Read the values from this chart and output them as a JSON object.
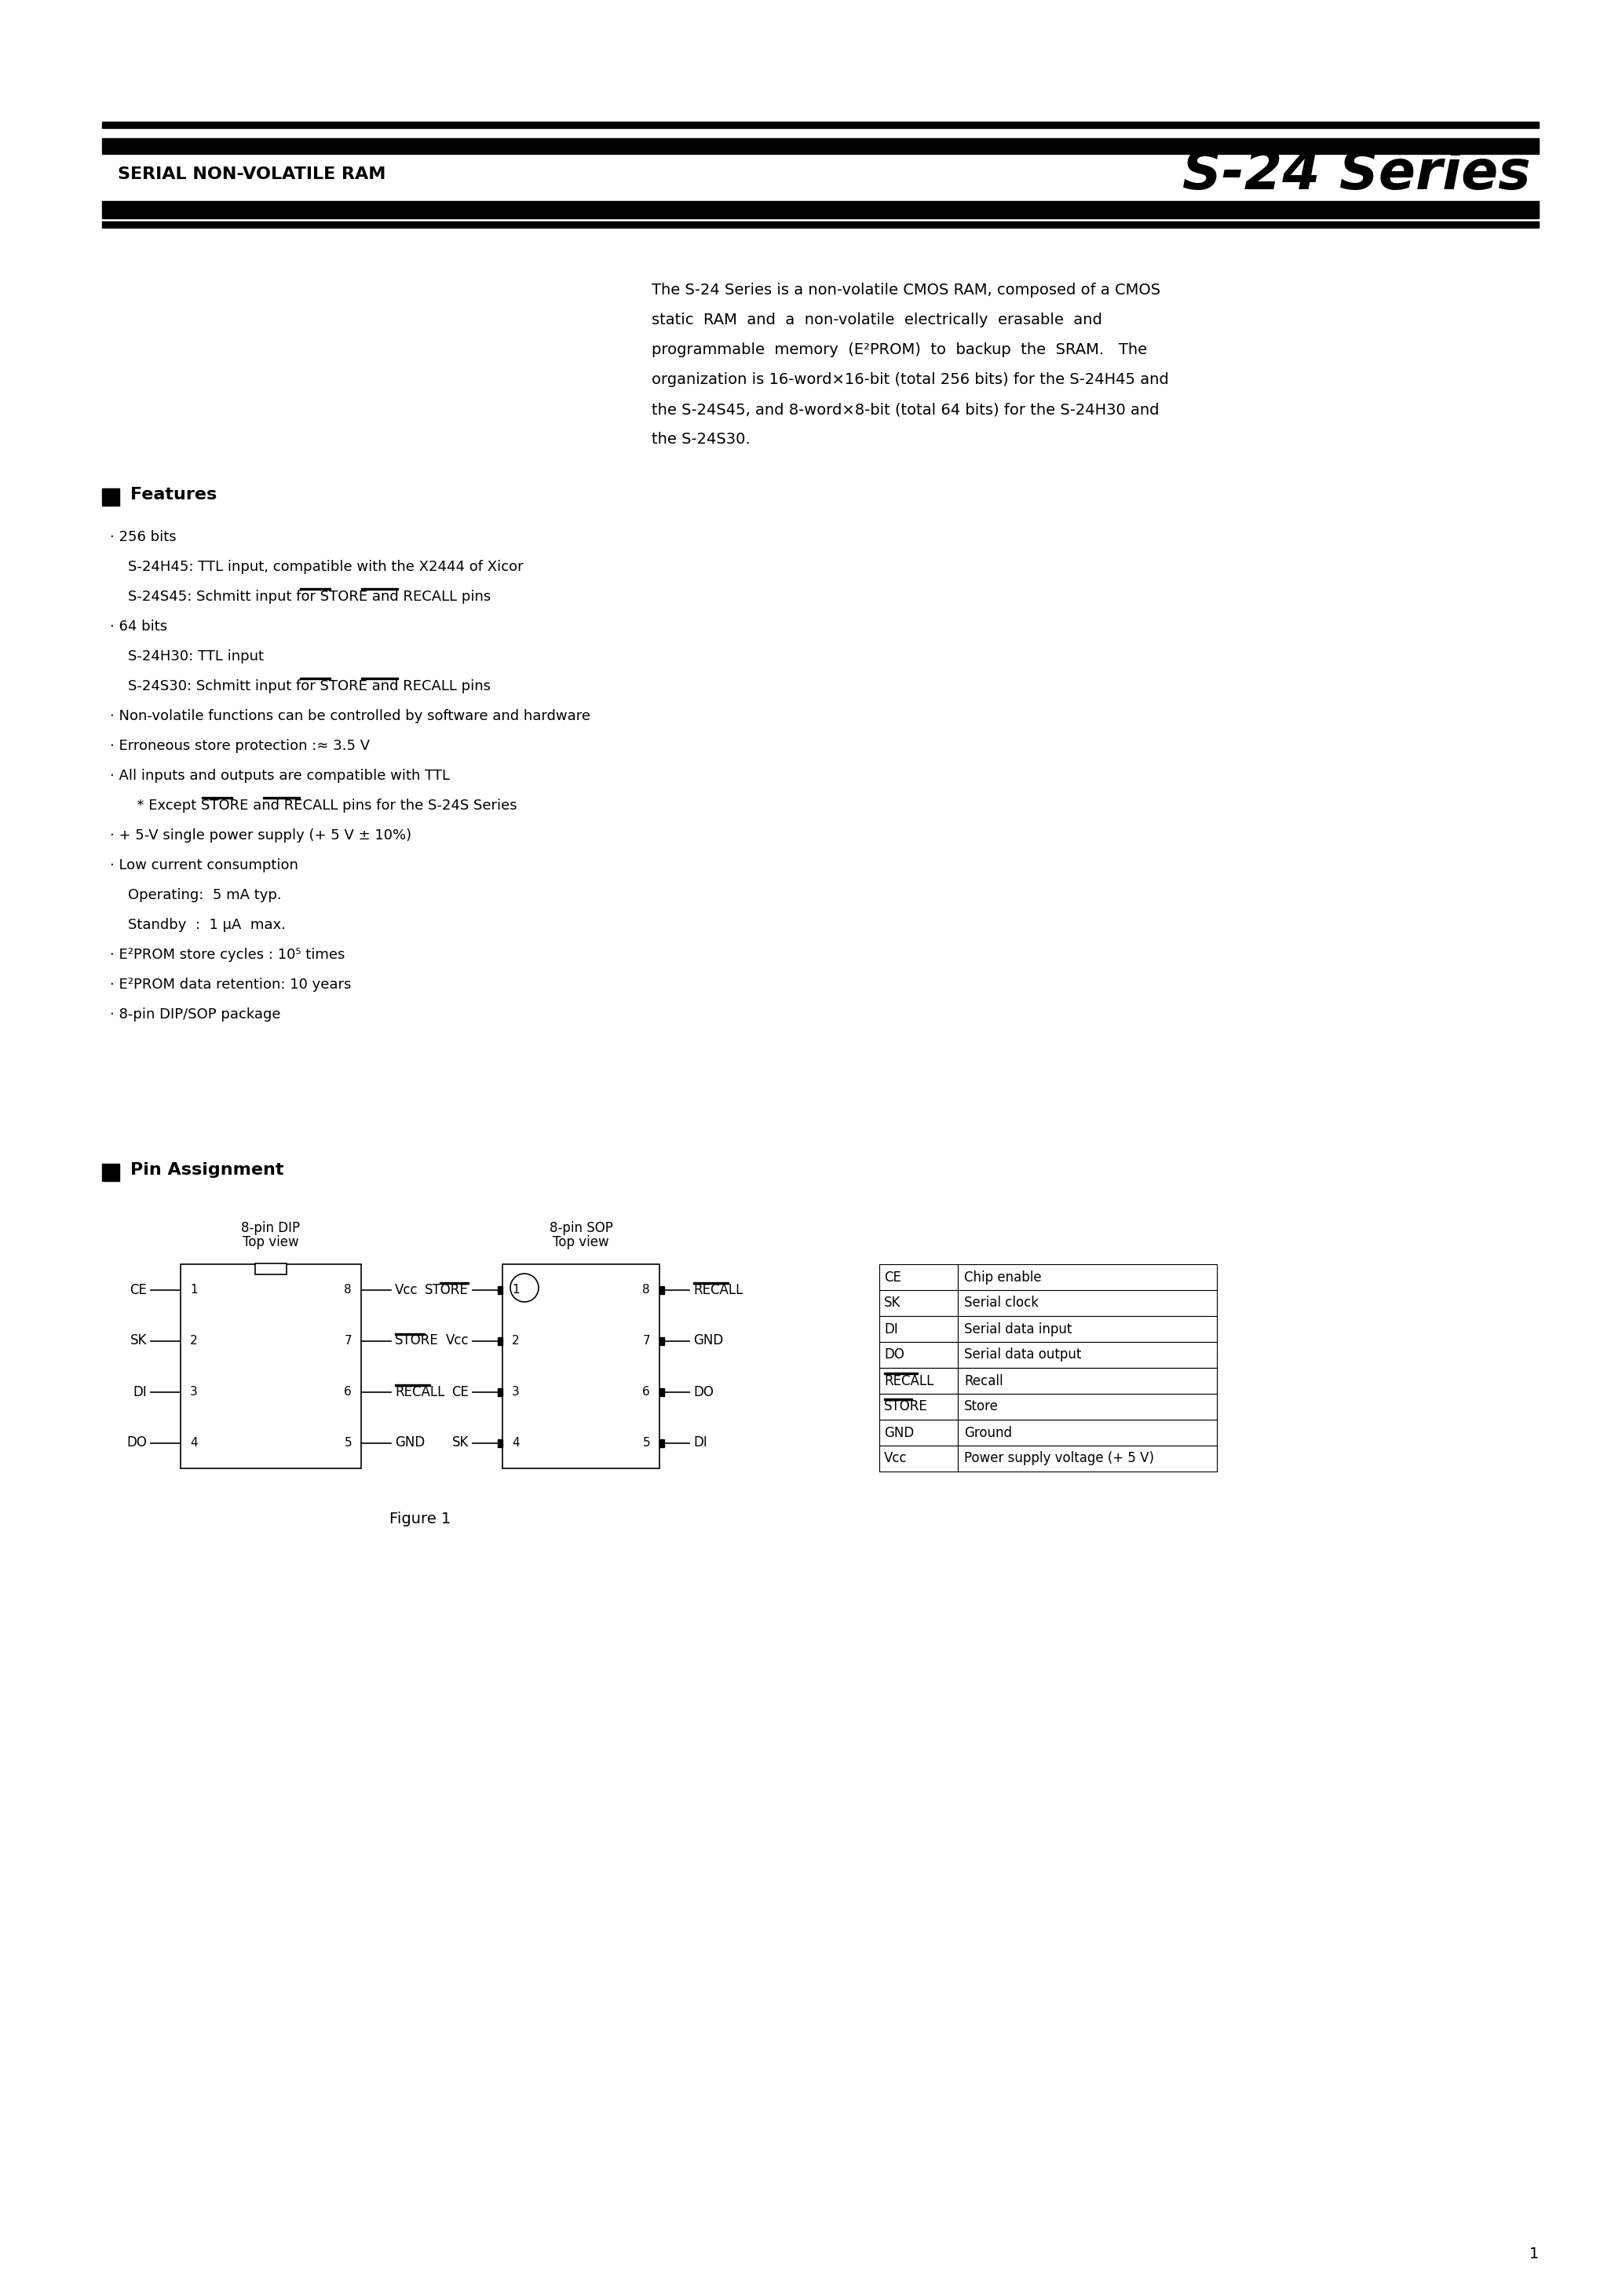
{
  "page_bg": "#ffffff",
  "header_left": "SERIAL NON-VOLATILE RAM",
  "header_right": "S-24 Series",
  "intro_text": [
    "The S-24 Series is a non-volatile CMOS RAM, composed of a CMOS",
    "static  RAM  and  a  non-volatile  electrically  erasable  and",
    "programmable  memory  (E²PROM)  to  backup  the  SRAM.   The",
    "organization is 16-word×16-bit (total 256 bits) for the S-24H45 and",
    "the S-24S45, and 8-word×8-bit (total 64 bits) for the S-24H30 and",
    "the S-24S30."
  ],
  "features_title": "Features",
  "features": [
    [
      "· 256 bits",
      false,
      []
    ],
    [
      "    S-24H45: TTL input, compatible with the X2444 of Xicor",
      false,
      []
    ],
    [
      "    S-24S45: Schmitt input for STORE and RECALL pins",
      false,
      [
        "STORE",
        "RECALL"
      ]
    ],
    [
      "· 64 bits",
      false,
      []
    ],
    [
      "    S-24H30: TTL input",
      false,
      []
    ],
    [
      "    S-24S30: Schmitt input for STORE and RECALL pins",
      false,
      [
        "STORE",
        "RECALL"
      ]
    ],
    [
      "· Non-volatile functions can be controlled by software and hardware",
      false,
      []
    ],
    [
      "· Erroneous store protection :≈ 3.5 V",
      false,
      []
    ],
    [
      "· All inputs and outputs are compatible with TTL",
      false,
      []
    ],
    [
      "      * Except STORE and RECALL pins for the S-24S Series",
      false,
      [
        "STORE",
        "RECALL"
      ]
    ],
    [
      "· + 5-V single power supply (+ 5 V ± 10%)",
      false,
      []
    ],
    [
      "· Low current consumption",
      false,
      []
    ],
    [
      "    Operating:  5 mA typ.",
      false,
      []
    ],
    [
      "    Standby  :  1 μA  max.",
      false,
      []
    ],
    [
      "· E²PROM store cycles : 10⁵ times",
      false,
      []
    ],
    [
      "· E²PROM data retention: 10 years",
      false,
      []
    ],
    [
      "· 8-pin DIP/SOP package",
      false,
      []
    ]
  ],
  "pin_assign_title": "Pin Assignment",
  "page_number": "1",
  "dip_label_line1": "8-pin DIP",
  "dip_label_line2": "Top view",
  "sop_label_line1": "8-pin SOP",
  "sop_label_line2": "Top view",
  "figure_label": "Figure 1",
  "dip_pins_left": [
    "CE",
    "SK",
    "DI",
    "DO"
  ],
  "dip_pins_right": [
    "Vcc",
    "STORE",
    "RECALL",
    "GND"
  ],
  "dip_nums_left": [
    "1",
    "2",
    "3",
    "4"
  ],
  "dip_nums_right": [
    "8",
    "7",
    "6",
    "5"
  ],
  "sop_pins_left": [
    "STORE",
    "Vcc",
    "CE",
    "SK"
  ],
  "sop_pins_right": [
    "RECALL",
    "GND",
    "DO",
    "DI"
  ],
  "sop_nums_left": [
    "1",
    "2",
    "3",
    "4"
  ],
  "sop_nums_right": [
    "8",
    "7",
    "6",
    "5"
  ],
  "table_data": [
    [
      "CE",
      "Chip enable"
    ],
    [
      "SK",
      "Serial clock"
    ],
    [
      "DI",
      "Serial data input"
    ],
    [
      "DO",
      "Serial data output"
    ],
    [
      "RECALL",
      "Recall"
    ],
    [
      "STORE",
      "Store"
    ],
    [
      "GND",
      "Ground"
    ],
    [
      "Vcc",
      "Power supply voltage (+ 5 V)"
    ]
  ]
}
